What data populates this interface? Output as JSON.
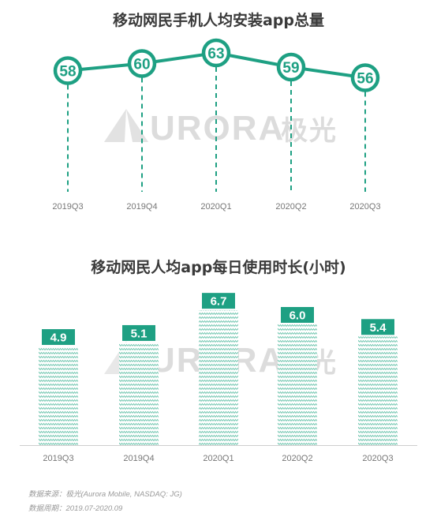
{
  "chart_data": [
    {
      "type": "line",
      "title": "移动网民手机人均安装app总量",
      "categories": [
        "2019Q3",
        "2019Q4",
        "2020Q1",
        "2020Q2",
        "2020Q3"
      ],
      "values": [
        58,
        60,
        63,
        59,
        56
      ],
      "color": "#1ea083",
      "grid": false
    },
    {
      "type": "bar",
      "title": "移动网民人均app每日使用时长(小时)",
      "categories": [
        "2019Q3",
        "2019Q4",
        "2020Q1",
        "2020Q2",
        "2020Q3"
      ],
      "values": [
        4.9,
        5.1,
        6.7,
        6.0,
        5.4
      ],
      "color": "#1ea083",
      "grid": false
    }
  ],
  "watermark": {
    "text": "URORA",
    "cn": "极光",
    "color": "#dcdcdc"
  },
  "footer": {
    "source": "数据来源：极光(Aurora Mobile, NASDAQ: JG)",
    "period": "数据周期：2019.07-2020.09"
  }
}
